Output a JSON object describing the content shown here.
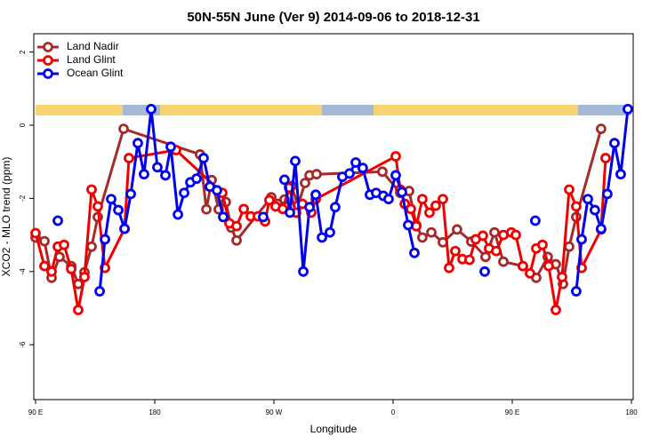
{
  "chart_data": {
    "type": "line",
    "title": "50N-55N June (Ver 9)   2014-09-06 to 2018-12-31",
    "xlabel": "Longitude",
    "ylabel": "XCO2 - MLO trend (ppm)",
    "xlim": [
      90,
      540
    ],
    "ylim": [
      -7.5,
      2.5
    ],
    "xticks": [
      {
        "value": 90,
        "label": "90 E"
      },
      180,
      {
        "value": 270,
        "label": "90 W"
      },
      {
        "value": 360,
        "label": "0"
      },
      {
        "value": 450,
        "label": "90 E"
      },
      {
        "value": 540,
        "label": "180"
      }
    ],
    "yticks": [
      -6,
      -4,
      -2,
      0,
      2
    ],
    "legend": "top-left",
    "series": [
      {
        "name": "Land Nadir",
        "color": "#a52a2a",
        "x": [
          90,
          96.7,
          102.1,
          108.1,
          116.9,
          122.2,
          126.9,
          132.3,
          137,
          156.5,
          214.2,
          219,
          223,
          228.3,
          233.7,
          237.8,
          241.8,
          268,
          272.7,
          278,
          283.4,
          288.1,
          293.5,
          296.9,
          302.2,
          351.9,
          365.4,
          372.1,
          377.5,
          382.1,
          388.9,
          397.6,
          408.3,
          419.1,
          429.8,
          436.6,
          443.3,
          458,
          468.1,
          476.8,
          482.9,
          488.3,
          493,
          498.3,
          517.1
        ],
        "values": [
          -3.07,
          -3.17,
          -4.17,
          -3.6,
          -3.85,
          -4.34,
          -4.02,
          -3.32,
          -2.51,
          -0.1,
          -0.8,
          -2.3,
          -1.5,
          -2.3,
          -2.1,
          -2.8,
          -3.15,
          -1.97,
          -2.15,
          -2.03,
          -1.66,
          -2.2,
          -1.58,
          -1.37,
          -1.34,
          -1.27,
          -1.85,
          -1.8,
          -2.73,
          -3.07,
          -2.93,
          -3.2,
          -2.85,
          -3.18,
          -3.6,
          -2.93,
          -3.73,
          -3.85,
          -4.17,
          -3.6,
          -3.8,
          -4.34,
          -3.32,
          -2.51,
          -0.1
        ]
      },
      {
        "name": "Land Glint",
        "color": "#ee0000",
        "x": [
          90,
          96.7,
          102.1,
          106.8,
          111.5,
          116.9,
          122.2,
          126.9,
          132.3,
          137,
          142.4,
          157.2,
          160.5,
          196.1,
          231,
          236.4,
          241.8,
          247.2,
          252.5,
          257.9,
          263.3,
          266.6,
          271.3,
          276.7,
          281.4,
          286.8,
          291.5,
          298.2,
          301.6,
          362,
          365.4,
          368.8,
          373.4,
          377.5,
          382.1,
          387.5,
          392.2,
          397.6,
          402.3,
          407,
          412.4,
          417.7,
          422.4,
          427.8,
          432.5,
          437.9,
          443.3,
          449.3,
          452.7,
          458,
          463.4,
          468.1,
          472.8,
          477.5,
          482.9,
          487.6,
          493,
          498.3,
          502.4,
          517.1,
          520.5
        ],
        "values": [
          -2.95,
          -3.85,
          -4,
          -3.32,
          -3.27,
          -3.93,
          -5.05,
          -4.15,
          -1.76,
          -2.22,
          -3.9,
          -2.83,
          -0.9,
          -0.68,
          -1.85,
          -2.68,
          -2.76,
          -2.29,
          -2.49,
          -2.49,
          -2.63,
          -2.05,
          -2.22,
          -2.29,
          -1.71,
          -2.39,
          -2.15,
          -2.39,
          -2.02,
          -0.85,
          -1.76,
          -2.15,
          -2.29,
          -2.76,
          -2.02,
          -2.39,
          -2.2,
          -2.02,
          -3.9,
          -3.44,
          -3.66,
          -3.68,
          -3.12,
          -3.02,
          -3.37,
          -3.44,
          -3,
          -2.93,
          -3,
          -3.85,
          -4.05,
          -3.37,
          -3.27,
          -3.85,
          -5.05,
          -4.15,
          -1.76,
          -2.22,
          -3.9,
          -2.85,
          -0.9
        ]
      },
      {
        "name": "Ocean Glint",
        "color": "#0000ee",
        "x": [
          106.8,
          null,
          138.4,
          142.4,
          147.1,
          152.5,
          157.2,
          161.9,
          167.2,
          171.9,
          177.3,
          182,
          188.1,
          192.1,
          197.5,
          202.2,
          206.9,
          211.6,
          216.9,
          221.6,
          227,
          231.7,
          null,
          261.9,
          null,
          278,
          282.1,
          286.1,
          292.2,
          296.9,
          301.6,
          306.3,
          312.3,
          316.3,
          321.7,
          327.1,
          331.8,
          337.1,
          342.5,
          347.2,
          352.6,
          356.6,
          362,
          366.7,
          371.4,
          376.1,
          null,
          429.2,
          null,
          467.4,
          null,
          498.3,
          502.4,
          507.1,
          512.4,
          517.1,
          521.8,
          527.2,
          531.9,
          537.3
        ],
        "values": [
          -2.61,
          null,
          -4.54,
          -3.12,
          -2.02,
          -2.32,
          -2.83,
          -1.88,
          -0.49,
          -1.34,
          0.44,
          -1.15,
          -1.37,
          -0.59,
          -2.44,
          -1.85,
          -1.56,
          -1.46,
          -0.9,
          -1.68,
          -1.78,
          -2.51,
          null,
          -2.51,
          null,
          -1.49,
          -2.39,
          -0.98,
          -4,
          -2.24,
          -1.9,
          -3.07,
          -2.93,
          -2.24,
          -1.41,
          -1.32,
          -1.02,
          -1.17,
          -1.9,
          -1.85,
          -1.93,
          -2.02,
          -1.37,
          -1.83,
          -2.73,
          -3.49,
          null,
          -4,
          null,
          -2.61,
          null,
          -4.54,
          -3.12,
          -2.02,
          -2.32,
          -2.83,
          -1.88,
          -0.49,
          -1.34,
          0.44
        ]
      }
    ]
  }
}
